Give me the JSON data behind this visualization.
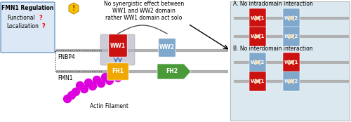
{
  "ww1_color": "#cc1111",
  "ww2_color": "#7fa8cc",
  "fh1_color": "#f0a800",
  "fh2_color": "#4a9a3a",
  "actin_color": "#dd00dd",
  "fnbp4_label": "FNBP4",
  "fmn1_label": "FMN1",
  "actin_label": "Actin Filament",
  "section_a_title": "A. No intradomain interaction",
  "section_b_title": "B. No interdomain interaction",
  "warning_line1": "No synergistic effect between",
  "warning_line2": "WW1 and WW2 domain",
  "warning_line3": "rather WW1 domain act solo",
  "left_box_line1": "FMN1 Regulation",
  "left_box_line2": "Functional",
  "left_box_line3": "Localization",
  "question_mark": "?",
  "right_panel_bg": "#dce8f0",
  "line_color": "#b0b0b0",
  "gray_box_color": "#c0c0c8",
  "hex_color": "#f5c300"
}
